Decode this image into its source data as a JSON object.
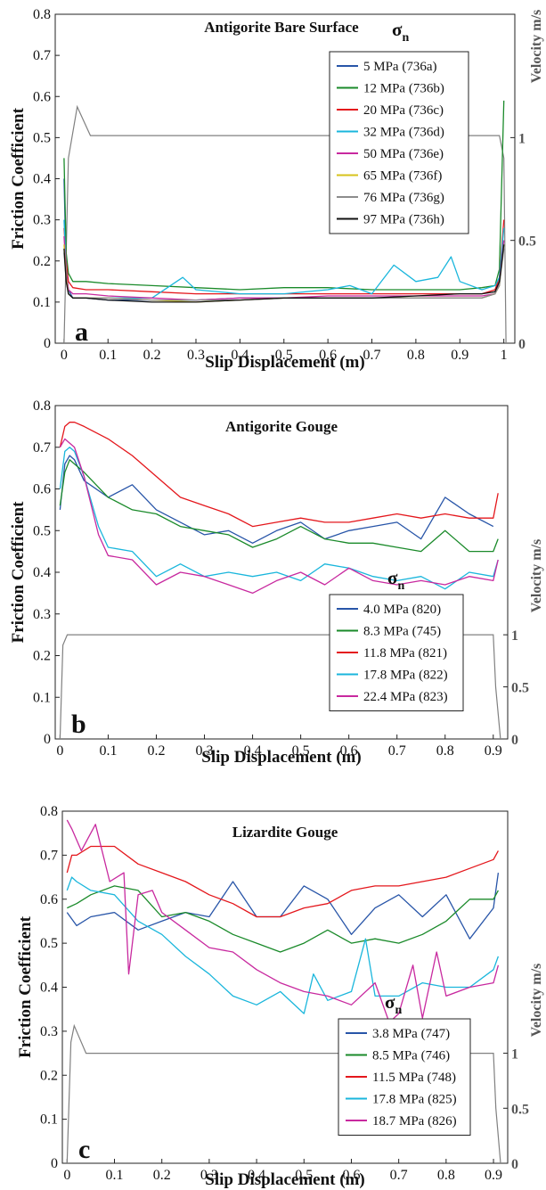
{
  "chart_data": [
    {
      "type": "line",
      "panel_label": "a",
      "title": "Antigorite Bare Surface",
      "xlabel": "Slip Displacement (m)",
      "ylabel": "Friction Coefficient",
      "y2label": "Velocity m/s",
      "xlim": [
        -0.02,
        1.025
      ],
      "ylim": [
        0,
        0.8
      ],
      "y2lim": [
        0,
        1.6
      ],
      "xticks": [
        "0",
        "0.1",
        "0.2",
        "0.3",
        "0.4",
        "0.5",
        "0.6",
        "0.7",
        "0.8",
        "0.9",
        "1"
      ],
      "yticks": [
        "0",
        "0.1",
        "0.2",
        "0.3",
        "0.4",
        "0.5",
        "0.6",
        "0.7",
        "0.8"
      ],
      "y2ticks": [
        "0",
        "0.5",
        "1"
      ],
      "legend_symbol": "σ",
      "legend_subscript": "n",
      "legend_position": "upper-right",
      "velocity": {
        "color": "#808080",
        "x": [
          0,
          0.01,
          0.03,
          0.06,
          0.5,
          0.99,
          1.0,
          1.005
        ],
        "y": [
          0,
          0.9,
          1.15,
          1.01,
          1.01,
          1.01,
          0.9,
          0
        ]
      },
      "series": [
        {
          "name": "5 MPa (736a)",
          "color": "#2855a8",
          "x": [
            0,
            0.005,
            0.01,
            0.02,
            0.05,
            0.1,
            0.2,
            0.3,
            0.4,
            0.5,
            0.6,
            0.7,
            0.8,
            0.9,
            0.95,
            0.98,
            0.99,
            1.0
          ],
          "y": [
            0.4,
            0.18,
            0.13,
            0.11,
            0.11,
            0.105,
            0.105,
            0.105,
            0.11,
            0.11,
            0.11,
            0.11,
            0.11,
            0.11,
            0.11,
            0.12,
            0.15,
            0.25
          ]
        },
        {
          "name": "12 MPa (736b)",
          "color": "#1a8a2a",
          "x": [
            0,
            0.005,
            0.01,
            0.02,
            0.05,
            0.1,
            0.2,
            0.3,
            0.4,
            0.5,
            0.6,
            0.7,
            0.8,
            0.9,
            0.95,
            0.98,
            0.99,
            1.0
          ],
          "y": [
            0.45,
            0.22,
            0.17,
            0.15,
            0.15,
            0.145,
            0.14,
            0.135,
            0.13,
            0.135,
            0.135,
            0.13,
            0.13,
            0.13,
            0.135,
            0.14,
            0.18,
            0.59
          ]
        },
        {
          "name": "20 MPa (736c)",
          "color": "#e4171c",
          "x": [
            0,
            0.005,
            0.01,
            0.02,
            0.05,
            0.1,
            0.2,
            0.3,
            0.4,
            0.5,
            0.6,
            0.7,
            0.8,
            0.9,
            0.95,
            0.98,
            0.99,
            1.0
          ],
          "y": [
            0.28,
            0.2,
            0.15,
            0.135,
            0.13,
            0.13,
            0.125,
            0.12,
            0.12,
            0.12,
            0.12,
            0.12,
            0.12,
            0.12,
            0.12,
            0.13,
            0.16,
            0.3
          ]
        },
        {
          "name": "32 MPa (736d)",
          "color": "#1ab6dc",
          "x": [
            0,
            0.005,
            0.01,
            0.02,
            0.05,
            0.1,
            0.2,
            0.27,
            0.3,
            0.4,
            0.5,
            0.6,
            0.65,
            0.7,
            0.75,
            0.8,
            0.85,
            0.88,
            0.9,
            0.95,
            0.98,
            0.99,
            1.0
          ],
          "y": [
            0.3,
            0.18,
            0.12,
            0.11,
            0.11,
            0.11,
            0.11,
            0.16,
            0.13,
            0.12,
            0.12,
            0.13,
            0.14,
            0.12,
            0.19,
            0.15,
            0.16,
            0.21,
            0.15,
            0.13,
            0.14,
            0.16,
            0.28
          ]
        },
        {
          "name": "50 MPa (736e)",
          "color": "#c8299f",
          "x": [
            0,
            0.005,
            0.01,
            0.02,
            0.05,
            0.1,
            0.2,
            0.3,
            0.4,
            0.5,
            0.6,
            0.7,
            0.8,
            0.9,
            0.95,
            0.98,
            0.99,
            1.0
          ],
          "y": [
            0.26,
            0.17,
            0.13,
            0.12,
            0.12,
            0.115,
            0.11,
            0.105,
            0.11,
            0.11,
            0.115,
            0.115,
            0.115,
            0.115,
            0.115,
            0.12,
            0.15,
            0.25
          ]
        },
        {
          "name": "65 MPa (736f)",
          "color": "#d7c31b",
          "x": [
            0,
            0.005,
            0.01,
            0.02,
            0.05,
            0.1,
            0.2,
            0.3,
            0.4,
            0.5,
            0.6,
            0.7,
            0.8,
            0.9,
            0.95,
            0.98,
            0.99,
            1.0
          ],
          "y": [
            0.24,
            0.16,
            0.12,
            0.11,
            0.11,
            0.11,
            0.105,
            0.1,
            0.105,
            0.11,
            0.11,
            0.11,
            0.11,
            0.11,
            0.11,
            0.12,
            0.14,
            0.24
          ]
        },
        {
          "name": "76 MPa (736g)",
          "color": "#8c8c8c",
          "x": [
            0,
            0.005,
            0.01,
            0.02,
            0.05,
            0.1,
            0.2,
            0.3,
            0.4,
            0.5,
            0.6,
            0.7,
            0.8,
            0.9,
            0.95,
            0.98,
            0.99,
            1.0
          ],
          "y": [
            0.22,
            0.15,
            0.12,
            0.11,
            0.11,
            0.11,
            0.105,
            0.105,
            0.105,
            0.11,
            0.11,
            0.11,
            0.11,
            0.11,
            0.11,
            0.12,
            0.14,
            0.23
          ]
        },
        {
          "name": "97 MPa (736h)",
          "color": "#111111",
          "x": [
            0,
            0.005,
            0.01,
            0.02,
            0.05,
            0.1,
            0.2,
            0.3,
            0.4,
            0.5,
            0.6,
            0.7,
            0.8,
            0.9,
            0.95,
            0.98,
            0.99,
            1.0
          ],
          "y": [
            0.23,
            0.15,
            0.12,
            0.11,
            0.11,
            0.105,
            0.1,
            0.1,
            0.105,
            0.11,
            0.11,
            0.11,
            0.115,
            0.12,
            0.12,
            0.125,
            0.15,
            0.24
          ]
        }
      ]
    },
    {
      "type": "line",
      "panel_label": "b",
      "title": "Antigorite Gouge",
      "xlabel": "Slip Displacement (m)",
      "ylabel": "Friction Coefficient",
      "y2label": "Velocity m/s",
      "xlim": [
        -0.01,
        0.93
      ],
      "ylim": [
        0,
        0.8
      ],
      "y2lim": [
        0,
        3.2
      ],
      "xticks": [
        "0",
        "0.1",
        "0.2",
        "0.3",
        "0.4",
        "0.5",
        "0.6",
        "0.7",
        "0.8",
        "0.9"
      ],
      "yticks": [
        "0",
        "0.1",
        "0.2",
        "0.3",
        "0.4",
        "0.5",
        "0.6",
        "0.7",
        "0.8"
      ],
      "y2ticks": [
        "0",
        "0.5",
        "1"
      ],
      "legend_symbol": "σ",
      "legend_subscript": "n",
      "legend_position": "lower-right",
      "velocity": {
        "color": "#808080",
        "x": [
          0,
          0.006,
          0.015,
          0.5,
          0.9,
          0.905,
          0.915
        ],
        "y": [
          0,
          0.9,
          1.0,
          1.0,
          1.0,
          0.5,
          0
        ]
      },
      "series": [
        {
          "name": "4.0 MPa (820)",
          "color": "#2855a8",
          "x": [
            0,
            0.01,
            0.02,
            0.03,
            0.05,
            0.1,
            0.15,
            0.2,
            0.25,
            0.3,
            0.35,
            0.4,
            0.45,
            0.5,
            0.55,
            0.6,
            0.65,
            0.7,
            0.75,
            0.8,
            0.85,
            0.9
          ],
          "y": [
            0.55,
            0.66,
            0.68,
            0.67,
            0.62,
            0.58,
            0.61,
            0.55,
            0.52,
            0.49,
            0.5,
            0.47,
            0.5,
            0.52,
            0.48,
            0.5,
            0.51,
            0.52,
            0.48,
            0.58,
            0.54,
            0.51
          ]
        },
        {
          "name": "8.3 MPa (745)",
          "color": "#1a8a2a",
          "x": [
            0,
            0.01,
            0.02,
            0.03,
            0.05,
            0.1,
            0.15,
            0.2,
            0.25,
            0.3,
            0.35,
            0.4,
            0.45,
            0.5,
            0.55,
            0.6,
            0.65,
            0.7,
            0.75,
            0.8,
            0.85,
            0.9,
            0.91
          ],
          "y": [
            0.56,
            0.64,
            0.67,
            0.66,
            0.64,
            0.58,
            0.55,
            0.54,
            0.51,
            0.5,
            0.49,
            0.46,
            0.48,
            0.51,
            0.48,
            0.47,
            0.47,
            0.46,
            0.45,
            0.5,
            0.45,
            0.45,
            0.48
          ]
        },
        {
          "name": "11.8 MPa (821)",
          "color": "#e4171c",
          "x": [
            0,
            0.01,
            0.02,
            0.03,
            0.05,
            0.1,
            0.15,
            0.2,
            0.25,
            0.3,
            0.35,
            0.4,
            0.45,
            0.5,
            0.55,
            0.6,
            0.65,
            0.7,
            0.75,
            0.8,
            0.85,
            0.9,
            0.91
          ],
          "y": [
            0.7,
            0.75,
            0.76,
            0.76,
            0.75,
            0.72,
            0.68,
            0.63,
            0.58,
            0.56,
            0.54,
            0.51,
            0.52,
            0.53,
            0.52,
            0.52,
            0.53,
            0.54,
            0.53,
            0.54,
            0.53,
            0.53,
            0.59
          ]
        },
        {
          "name": "17.8 MPa (822)",
          "color": "#1ab6dc",
          "x": [
            0,
            0.01,
            0.02,
            0.03,
            0.05,
            0.08,
            0.1,
            0.15,
            0.2,
            0.25,
            0.3,
            0.35,
            0.4,
            0.45,
            0.5,
            0.55,
            0.6,
            0.65,
            0.7,
            0.75,
            0.8,
            0.85,
            0.9,
            0.91
          ],
          "y": [
            0.6,
            0.69,
            0.7,
            0.69,
            0.63,
            0.51,
            0.46,
            0.45,
            0.39,
            0.42,
            0.39,
            0.4,
            0.39,
            0.4,
            0.38,
            0.42,
            0.41,
            0.39,
            0.38,
            0.39,
            0.36,
            0.4,
            0.39,
            0.43
          ]
        },
        {
          "name": "22.4 MPa (823)",
          "color": "#c8299f",
          "x": [
            0,
            0.01,
            0.02,
            0.03,
            0.05,
            0.08,
            0.1,
            0.15,
            0.2,
            0.25,
            0.3,
            0.35,
            0.4,
            0.45,
            0.5,
            0.55,
            0.6,
            0.65,
            0.7,
            0.75,
            0.8,
            0.85,
            0.9,
            0.91
          ],
          "y": [
            0.7,
            0.72,
            0.71,
            0.7,
            0.63,
            0.49,
            0.44,
            0.43,
            0.37,
            0.4,
            0.39,
            0.37,
            0.35,
            0.38,
            0.4,
            0.37,
            0.41,
            0.38,
            0.37,
            0.38,
            0.37,
            0.39,
            0.38,
            0.43
          ]
        }
      ]
    },
    {
      "type": "line",
      "panel_label": "c",
      "title": "Lizardite Gouge",
      "xlabel": "Slip Displacement (m)",
      "ylabel": "Friction Coefficient",
      "y2label": "Velocity m/s",
      "xlim": [
        -0.01,
        0.93
      ],
      "ylim": [
        0,
        0.8
      ],
      "y2lim": [
        0,
        3.2
      ],
      "xticks": [
        "0",
        "0.1",
        "0.2",
        "0.3",
        "0.4",
        "0.5",
        "0.6",
        "0.7",
        "0.8",
        "0.9"
      ],
      "yticks": [
        "0",
        "0.1",
        "0.2",
        "0.3",
        "0.4",
        "0.5",
        "0.6",
        "0.7",
        "0.8"
      ],
      "y2ticks": [
        "0",
        "0.5",
        "1"
      ],
      "legend_symbol": "σ",
      "legend_subscript": "n",
      "legend_position": "lower-right",
      "velocity": {
        "color": "#808080",
        "x": [
          0,
          0.008,
          0.015,
          0.04,
          0.5,
          0.9,
          0.905,
          0.915
        ],
        "y": [
          0,
          1.1,
          1.25,
          1.0,
          1.0,
          1.0,
          0.5,
          0
        ]
      },
      "series": [
        {
          "name": "3.8 MPa (747)",
          "color": "#2855a8",
          "x": [
            0,
            0.02,
            0.05,
            0.1,
            0.15,
            0.2,
            0.25,
            0.3,
            0.35,
            0.4,
            0.45,
            0.5,
            0.55,
            0.6,
            0.65,
            0.7,
            0.75,
            0.8,
            0.85,
            0.9,
            0.91
          ],
          "y": [
            0.57,
            0.54,
            0.56,
            0.57,
            0.53,
            0.55,
            0.57,
            0.56,
            0.64,
            0.56,
            0.56,
            0.63,
            0.6,
            0.52,
            0.58,
            0.61,
            0.56,
            0.61,
            0.51,
            0.58,
            0.66
          ]
        },
        {
          "name": "8.5 MPa (746)",
          "color": "#1a8a2a",
          "x": [
            0,
            0.02,
            0.05,
            0.1,
            0.15,
            0.2,
            0.25,
            0.3,
            0.35,
            0.4,
            0.45,
            0.5,
            0.55,
            0.6,
            0.65,
            0.7,
            0.75,
            0.8,
            0.85,
            0.9,
            0.91
          ],
          "y": [
            0.58,
            0.59,
            0.61,
            0.63,
            0.62,
            0.56,
            0.57,
            0.55,
            0.52,
            0.5,
            0.48,
            0.5,
            0.53,
            0.5,
            0.51,
            0.5,
            0.52,
            0.55,
            0.6,
            0.6,
            0.62
          ]
        },
        {
          "name": "11.5 MPa (748)",
          "color": "#e4171c",
          "x": [
            0,
            0.01,
            0.02,
            0.05,
            0.1,
            0.15,
            0.2,
            0.25,
            0.3,
            0.35,
            0.4,
            0.45,
            0.5,
            0.55,
            0.6,
            0.65,
            0.7,
            0.75,
            0.8,
            0.85,
            0.9,
            0.91
          ],
          "y": [
            0.66,
            0.7,
            0.7,
            0.72,
            0.72,
            0.68,
            0.66,
            0.64,
            0.61,
            0.59,
            0.56,
            0.56,
            0.58,
            0.59,
            0.62,
            0.63,
            0.63,
            0.64,
            0.65,
            0.67,
            0.69,
            0.71
          ]
        },
        {
          "name": "17.8 MPa (825)",
          "color": "#1ab6dc",
          "x": [
            0,
            0.01,
            0.02,
            0.05,
            0.1,
            0.15,
            0.2,
            0.25,
            0.3,
            0.35,
            0.4,
            0.45,
            0.5,
            0.52,
            0.55,
            0.6,
            0.63,
            0.65,
            0.7,
            0.75,
            0.8,
            0.85,
            0.9,
            0.91
          ],
          "y": [
            0.62,
            0.65,
            0.64,
            0.62,
            0.61,
            0.55,
            0.52,
            0.47,
            0.43,
            0.38,
            0.36,
            0.39,
            0.34,
            0.43,
            0.37,
            0.39,
            0.51,
            0.38,
            0.38,
            0.41,
            0.4,
            0.4,
            0.44,
            0.47
          ]
        },
        {
          "name": "18.7 MPa (826)",
          "color": "#c8299f",
          "x": [
            0,
            0.01,
            0.03,
            0.06,
            0.09,
            0.12,
            0.13,
            0.15,
            0.18,
            0.2,
            0.25,
            0.3,
            0.35,
            0.4,
            0.45,
            0.5,
            0.55,
            0.6,
            0.65,
            0.68,
            0.7,
            0.73,
            0.75,
            0.78,
            0.8,
            0.85,
            0.9,
            0.91
          ],
          "y": [
            0.78,
            0.76,
            0.71,
            0.77,
            0.64,
            0.66,
            0.43,
            0.61,
            0.62,
            0.57,
            0.53,
            0.49,
            0.48,
            0.44,
            0.41,
            0.39,
            0.38,
            0.36,
            0.41,
            0.32,
            0.34,
            0.45,
            0.33,
            0.48,
            0.38,
            0.4,
            0.41,
            0.45
          ]
        }
      ]
    }
  ]
}
